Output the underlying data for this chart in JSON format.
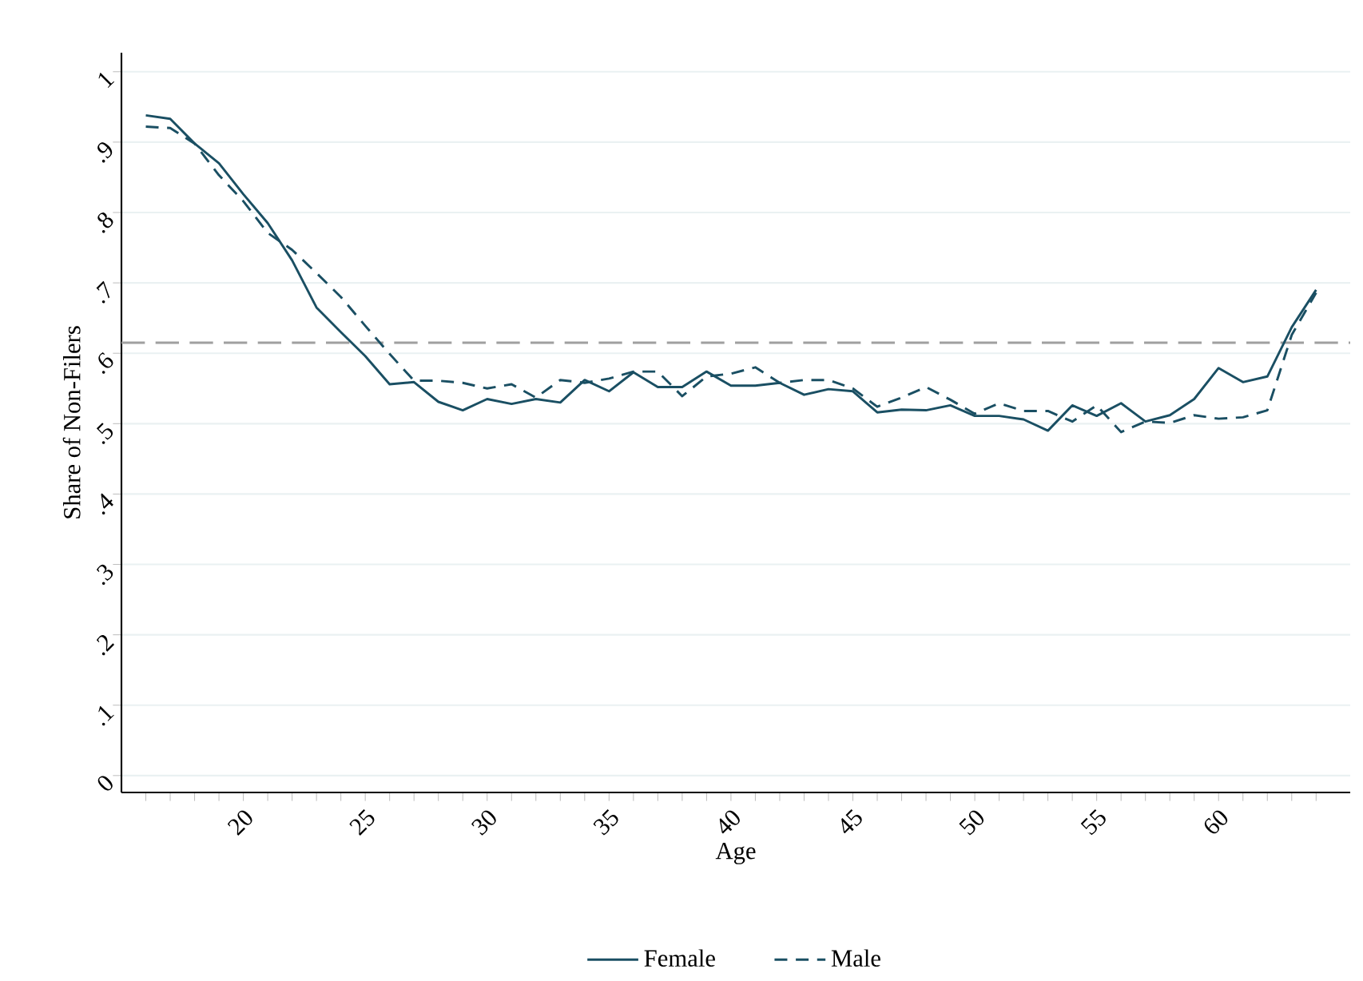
{
  "chart_data": {
    "type": "line",
    "xlabel": "Age",
    "ylabel": "Share of Non-Filers",
    "x": [
      16,
      17,
      18,
      19,
      20,
      21,
      22,
      23,
      24,
      25,
      26,
      27,
      28,
      29,
      30,
      31,
      32,
      33,
      34,
      35,
      36,
      37,
      38,
      39,
      40,
      41,
      42,
      43,
      44,
      45,
      46,
      47,
      48,
      49,
      50,
      51,
      52,
      53,
      54,
      55,
      56,
      57,
      58,
      59,
      60,
      61,
      62,
      63,
      64
    ],
    "series": [
      {
        "name": "Female",
        "color": "#1a4f63",
        "line_style": "solid",
        "values": [
          0.938,
          0.933,
          0.898,
          0.87,
          0.826,
          0.785,
          0.732,
          0.665,
          0.63,
          0.596,
          0.556,
          0.559,
          0.531,
          0.519,
          0.535,
          0.528,
          0.535,
          0.53,
          0.562,
          0.546,
          0.573,
          0.552,
          0.552,
          0.574,
          0.554,
          0.554,
          0.558,
          0.541,
          0.549,
          0.546,
          0.516,
          0.52,
          0.519,
          0.526,
          0.511,
          0.511,
          0.506,
          0.49,
          0.526,
          0.511,
          0.529,
          0.503,
          0.512,
          0.535,
          0.579,
          0.559,
          0.567,
          0.637,
          0.69
        ]
      },
      {
        "name": "Male",
        "color": "#1a4f63",
        "line_style": "dashed",
        "values": [
          0.922,
          0.92,
          0.898,
          0.853,
          0.816,
          0.771,
          0.747,
          0.714,
          0.68,
          0.639,
          0.599,
          0.561,
          0.561,
          0.558,
          0.55,
          0.556,
          0.537,
          0.562,
          0.558,
          0.564,
          0.574,
          0.574,
          0.539,
          0.567,
          0.571,
          0.58,
          0.558,
          0.562,
          0.562,
          0.55,
          0.524,
          0.537,
          0.552,
          0.534,
          0.514,
          0.529,
          0.518,
          0.518,
          0.503,
          0.526,
          0.488,
          0.503,
          0.501,
          0.512,
          0.507,
          0.509,
          0.519,
          0.626,
          0.686
        ]
      }
    ],
    "xlim": [
      15,
      65.4
    ],
    "ylim": [
      -0.024,
      1.027
    ],
    "xticks": [
      {
        "value": 16,
        "label": null
      },
      {
        "value": 17,
        "label": null
      },
      {
        "value": 18,
        "label": null
      },
      {
        "value": 19,
        "label": null
      },
      20,
      {
        "value": 21,
        "label": null
      },
      {
        "value": 22,
        "label": null
      },
      {
        "value": 23,
        "label": null
      },
      {
        "value": 24,
        "label": null
      },
      25,
      {
        "value": 26,
        "label": null
      },
      {
        "value": 27,
        "label": null
      },
      {
        "value": 28,
        "label": null
      },
      {
        "value": 29,
        "label": null
      },
      30,
      {
        "value": 31,
        "label": null
      },
      {
        "value": 32,
        "label": null
      },
      {
        "value": 33,
        "label": null
      },
      {
        "value": 34,
        "label": null
      },
      35,
      {
        "value": 36,
        "label": null
      },
      {
        "value": 37,
        "label": null
      },
      {
        "value": 38,
        "label": null
      },
      {
        "value": 39,
        "label": null
      },
      40,
      {
        "value": 41,
        "label": null
      },
      {
        "value": 42,
        "label": null
      },
      {
        "value": 43,
        "label": null
      },
      {
        "value": 44,
        "label": null
      },
      45,
      {
        "value": 46,
        "label": null
      },
      {
        "value": 47,
        "label": null
      },
      {
        "value": 48,
        "label": null
      },
      {
        "value": 49,
        "label": null
      },
      50,
      {
        "value": 51,
        "label": null
      },
      {
        "value": 52,
        "label": null
      },
      {
        "value": 53,
        "label": null
      },
      {
        "value": 54,
        "label": null
      },
      55,
      {
        "value": 56,
        "label": null
      },
      {
        "value": 57,
        "label": null
      },
      {
        "value": 58,
        "label": null
      },
      {
        "value": 59,
        "label": null
      },
      60,
      {
        "value": 61,
        "label": null
      },
      {
        "value": 62,
        "label": null
      },
      {
        "value": 63,
        "label": null
      },
      {
        "value": 64,
        "label": null
      }
    ],
    "yticks": [
      0,
      {
        "value": 0.1,
        "label": ".1"
      },
      {
        "value": 0.2,
        "label": ".2"
      },
      {
        "value": 0.3,
        "label": ".3"
      },
      {
        "value": 0.4,
        "label": ".4"
      },
      {
        "value": 0.5,
        "label": ".5"
      },
      {
        "value": 0.6,
        "label": ".6"
      },
      {
        "value": 0.7,
        "label": ".7"
      },
      {
        "value": 0.8,
        "label": ".8"
      },
      {
        "value": 0.9,
        "label": ".9"
      },
      1
    ],
    "ref_lines": [
      {
        "axis": "y",
        "value": 0.615,
        "color": "#a0a0a0",
        "line_style": "dashed"
      }
    ],
    "grid": "y",
    "legend": "bottom"
  }
}
